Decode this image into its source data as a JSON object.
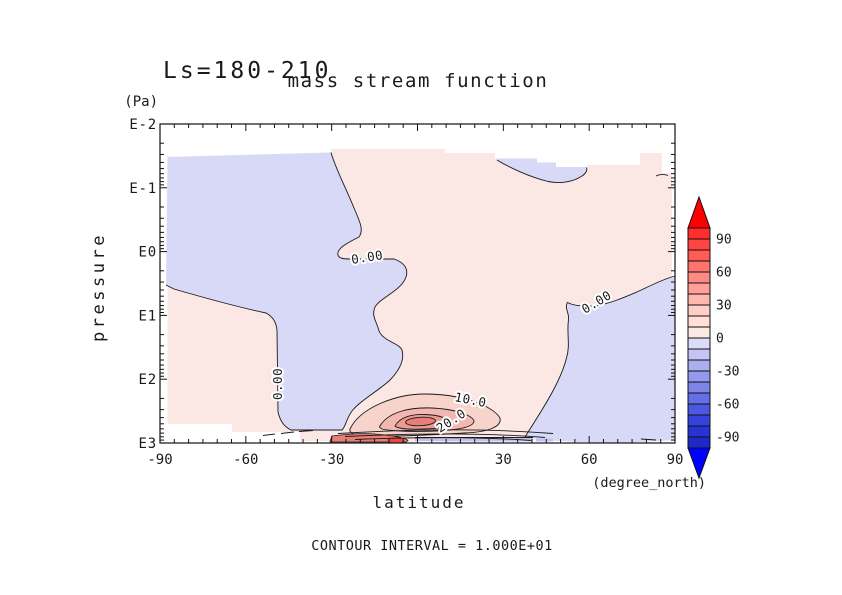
{
  "titles": {
    "panel": "Ls=180-210",
    "main": "mass stream function"
  },
  "axes": {
    "y": {
      "label": "pressure",
      "unit": "(Pa)",
      "ticks": [
        "E-2",
        "E-1",
        "E0",
        "E1",
        "E2",
        "E3"
      ]
    },
    "x": {
      "label": "latitude",
      "unit": "(degree_north)",
      "ticks": [
        "-90",
        "-60",
        "-30",
        "0",
        "30",
        "60",
        "90"
      ]
    }
  },
  "colorbar": {
    "labels": [
      "90",
      "60",
      "30",
      "0",
      "-30",
      "-60",
      "-90"
    ],
    "box_colors": [
      "#FF2E2C",
      "#FF4542",
      "#FF5C58",
      "#FF736E",
      "#FF8A84",
      "#FFA19A",
      "#FFB8B0",
      "#FFCFC6",
      "#FFDFD6",
      "#FBE9E4",
      "#DADCF8",
      "#C3C6F5",
      "#ABAFF1",
      "#939AED",
      "#7C84E9",
      "#646EE5",
      "#4D58E1",
      "#3542DD",
      "#2833D4",
      "#1F28C8"
    ],
    "arrow_top_color": "#FF0000",
    "arrow_bottom_color": "#0000FF"
  },
  "contour_labels": {
    "zero_mid": "0.00",
    "zero_right": "0.00",
    "zero_left_vertical": "0.00",
    "ten": "10.0",
    "twenty": "20.0"
  },
  "footer": {
    "contour_interval_text": "CONTOUR INTERVAL = 1.000E+01"
  },
  "colors": {
    "pos_band_0_10": "#FBE8E5",
    "pos_band_10_20": "#F7D3CC",
    "pos_band_20_30": "#F2B7B0",
    "pos_band_30_40": "#EC9A93",
    "pos_band_40_50": "#E87E78",
    "neg_band_0_10": "#D7D9F7",
    "neg_band_10_20": "#BFC3F3",
    "spot_red": "#EE4540",
    "contour_line": "#1a1a1a"
  },
  "chart_data": {
    "type": "heatmap",
    "subtype": "filled_contour_section",
    "title": "mass stream function",
    "panel_label": "Ls=180-210",
    "xlabel": "latitude",
    "x_unit": "degree_north",
    "x_range": [
      -90,
      90
    ],
    "x_major_ticks": [
      -90,
      -60,
      -30,
      0,
      30,
      60,
      90
    ],
    "x_minor_tick_step": 5,
    "ylabel": "pressure",
    "y_unit": "Pa",
    "y_scale": "log",
    "y_tick_labels": [
      "E-2",
      "E-1",
      "E0",
      "E1",
      "E2",
      "E3"
    ],
    "y_range_pa": [
      0.01,
      1000
    ],
    "contour_interval": 10,
    "labeled_contour_values": [
      0,
      10,
      20
    ],
    "colorbar_range": [
      -100,
      100
    ],
    "colorbar_tick_values": [
      90,
      60,
      30,
      0,
      -30,
      -60,
      -90
    ],
    "legend_position": "right-vertical-colorbar-with-arrow-ends",
    "grid": false,
    "features": [
      {
        "name": "negative_cell_left",
        "value_band": [
          -10,
          0
        ],
        "extent": "lat -88 to ~-20/0, from top of data (~3e-2 Pa) down to ~700 Pa; tongue narrows toward bottom near lat -40 to -15"
      },
      {
        "name": "positive_region_right",
        "value_band": [
          0,
          10
        ],
        "extent": "most of lat 0 to 90 and a band below the left negative cell (lat -88 to -50 at mid-low levels)"
      },
      {
        "name": "negative_patch_upper_right",
        "value_band": [
          -10,
          0
        ],
        "extent": "lat ~28 to 60 near 5e-2 to 2e-1 Pa"
      },
      {
        "name": "negative_region_lower_right",
        "value_band": [
          -10,
          0
        ],
        "extent": "lat ~50 to 90 below ~10 Pa down to bottom"
      },
      {
        "name": "positive_cell_max",
        "peak_value_band": [
          40,
          50
        ],
        "location": "lat ~0 to 5, pressure ~400-700 Pa, nested contours 10/20/30/40"
      },
      {
        "name": "small_intense_positive_spot",
        "location": "lat ~-12, near 1000 Pa bottom edge"
      },
      {
        "name": "thin_negative_strip_bottom",
        "value_band": [
          -20,
          -10
        ],
        "location": "lat ~0 to 40 at ~900-1000 Pa"
      }
    ],
    "annotation": "CONTOUR INTERVAL = 1.000E+01"
  }
}
